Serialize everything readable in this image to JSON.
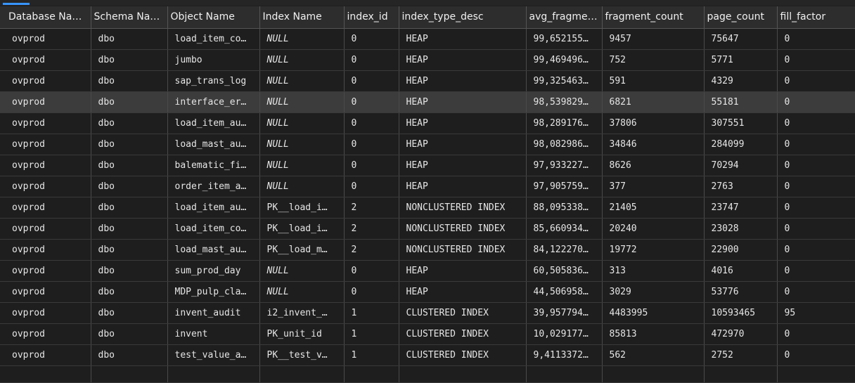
{
  "columns": [
    "Database Name",
    "Schema Name",
    "Object Name",
    "Index Name",
    "index_id",
    "index_type_desc",
    "avg_fragme…",
    "fragment_count",
    "page_count",
    "fill_factor"
  ],
  "rows": [
    [
      "ovprod",
      "dbo",
      "load_item_co…",
      "NULL",
      "0",
      "HEAP",
      "99,652155…",
      "9457",
      "75647",
      "0"
    ],
    [
      "ovprod",
      "dbo",
      "jumbo",
      "NULL",
      "0",
      "HEAP",
      "99,469496…",
      "752",
      "5771",
      "0"
    ],
    [
      "ovprod",
      "dbo",
      "sap_trans_log",
      "NULL",
      "0",
      "HEAP",
      "99,325463…",
      "591",
      "4329",
      "0"
    ],
    [
      "ovprod",
      "dbo",
      "interface_er…",
      "NULL",
      "0",
      "HEAP",
      "98,539829…",
      "6821",
      "55181",
      "0"
    ],
    [
      "ovprod",
      "dbo",
      "load_item_au…",
      "NULL",
      "0",
      "HEAP",
      "98,289176…",
      "37806",
      "307551",
      "0"
    ],
    [
      "ovprod",
      "dbo",
      "load_mast_au…",
      "NULL",
      "0",
      "HEAP",
      "98,082986…",
      "34846",
      "284099",
      "0"
    ],
    [
      "ovprod",
      "dbo",
      "balematic_fi…",
      "NULL",
      "0",
      "HEAP",
      "97,933227…",
      "8626",
      "70294",
      "0"
    ],
    [
      "ovprod",
      "dbo",
      "order_item_a…",
      "NULL",
      "0",
      "HEAP",
      "97,905759…",
      "377",
      "2763",
      "0"
    ],
    [
      "ovprod",
      "dbo",
      "load_item_au…",
      "PK__load_i…",
      "2",
      "NONCLUSTERED INDEX",
      "88,095338…",
      "21405",
      "23747",
      "0"
    ],
    [
      "ovprod",
      "dbo",
      "load_item_co…",
      "PK__load_i…",
      "2",
      "NONCLUSTERED INDEX",
      "85,660934…",
      "20240",
      "23028",
      "0"
    ],
    [
      "ovprod",
      "dbo",
      "load_mast_au…",
      "PK__load_m…",
      "2",
      "NONCLUSTERED INDEX",
      "84,122270…",
      "19772",
      "22900",
      "0"
    ],
    [
      "ovprod",
      "dbo",
      "sum_prod_day",
      "NULL",
      "0",
      "HEAP",
      "60,505836…",
      "313",
      "4016",
      "0"
    ],
    [
      "ovprod",
      "dbo",
      "MDP_pulp_cla…",
      "NULL",
      "0",
      "HEAP",
      "44,506958…",
      "3029",
      "53776",
      "0"
    ],
    [
      "ovprod",
      "dbo",
      "invent_audit",
      "i2_invent_…",
      "1",
      "CLUSTERED INDEX",
      "39,957794…",
      "4483995",
      "10593465",
      "95"
    ],
    [
      "ovprod",
      "dbo",
      "invent",
      "PK_unit_id",
      "1",
      "CLUSTERED INDEX",
      "10,029177…",
      "85813",
      "472970",
      "0"
    ],
    [
      "ovprod",
      "dbo",
      "test_value_a…",
      "PK__test_v…",
      "1",
      "CLUSTERED INDEX",
      "9,4113372…",
      "562",
      "2752",
      "0"
    ]
  ],
  "selected_row": 3
}
